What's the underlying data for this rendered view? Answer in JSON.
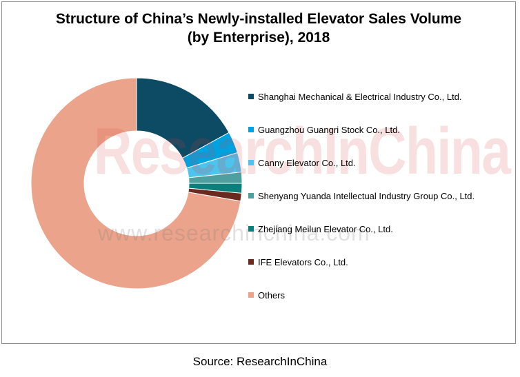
{
  "chart_data": {
    "type": "pie",
    "variant": "donut",
    "title_line1": "Structure of China’s Newly-installed Elevator Sales Volume",
    "title_line2": "(by Enterprise), 2018",
    "slices": [
      {
        "name": "Shanghai Mechanical & Electrical Industry Co., Ltd.",
        "value": 17.0,
        "color": "#0d4a63"
      },
      {
        "name": "Guangzhou Guangri Stock Co., Ltd.",
        "value": 3.3,
        "color": "#00a2e0"
      },
      {
        "name": "Canny Elevator Co., Ltd.",
        "value": 3.0,
        "color": "#4ec3ec"
      },
      {
        "name": "Shenyang Yuanda Intellectual Industry Group Co., Ltd.",
        "value": 1.7,
        "color": "#4f9f9f"
      },
      {
        "name": "Zhejiang Meilun Elevator Co., Ltd.",
        "value": 1.5,
        "color": "#0c7f7a"
      },
      {
        "name": "IFE Elevators Co., Ltd.",
        "value": 1.2,
        "color": "#6b2a1f"
      },
      {
        "name": "Others",
        "value": 72.3,
        "color": "#eba48b"
      }
    ],
    "legend_position": "right"
  },
  "watermark": {
    "brand": "ResearchInChina",
    "url": "www.researchinchina.com"
  },
  "source": "Source: ResearchInChina"
}
